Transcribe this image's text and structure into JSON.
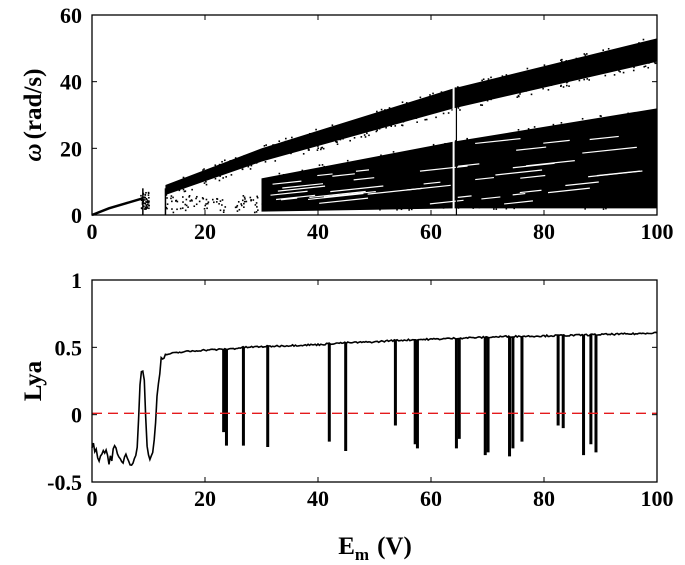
{
  "chart_data": [
    {
      "type": "scatter",
      "title": "",
      "ylabel_symbol": "ω",
      "ylabel_unit": "(rad/s)",
      "xlabel": "",
      "xlim": [
        0,
        100
      ],
      "ylim": [
        0,
        60
      ],
      "xticks": [
        "0",
        "20",
        "40",
        "60",
        "80",
        "100"
      ],
      "yticks": [
        "0",
        "20",
        "40",
        "60"
      ],
      "grid": false,
      "color": "#000000",
      "band_upper": {
        "x": [
          13,
          30,
          64,
          100
        ],
        "y_low": [
          6,
          16,
          32,
          46
        ],
        "y_high": [
          9,
          20,
          38,
          53
        ]
      },
      "band_lower": {
        "x": [
          30,
          64,
          100
        ],
        "y_low": [
          1,
          2,
          2
        ],
        "y_high": [
          11,
          22,
          32
        ]
      },
      "features": {
        "startup_curve": [
          [
            0,
            0
          ],
          [
            3,
            2
          ],
          [
            6,
            3.5
          ],
          [
            9,
            5
          ]
        ],
        "column_breaks": [
          9,
          13,
          64
        ]
      }
    },
    {
      "type": "line",
      "title": "",
      "ylabel": "Lya",
      "xlabel": "E",
      "xlabel_sub": "m",
      "xlabel_unit": "(V)",
      "xlim": [
        0,
        100
      ],
      "ylim": [
        -0.5,
        1
      ],
      "xticks": [
        "0",
        "20",
        "40",
        "60",
        "80",
        "100"
      ],
      "yticks": [
        "-0.5",
        "0",
        "0.5",
        "1"
      ],
      "grid": false,
      "series": [
        {
          "color": "#000000",
          "x": [
            0,
            1,
            2,
            3,
            4,
            5,
            6,
            7,
            8,
            8.6,
            9.2,
            9.8,
            10.4,
            11,
            11.6,
            12.2,
            12.8,
            13.5,
            15,
            17,
            20,
            23,
            25,
            27,
            30,
            33,
            36,
            40,
            43,
            46,
            50,
            53,
            56,
            60,
            63,
            66,
            70,
            73,
            76,
            80,
            83,
            86,
            90,
            93,
            96,
            100
          ],
          "y": [
            -0.23,
            -0.32,
            -0.25,
            -0.33,
            -0.27,
            -0.35,
            -0.3,
            -0.34,
            -0.28,
            0.35,
            0.3,
            -0.3,
            -0.34,
            -0.2,
            0.2,
            0.4,
            0.44,
            0.45,
            0.46,
            0.47,
            0.48,
            0.485,
            0.49,
            0.5,
            0.505,
            0.51,
            0.515,
            0.52,
            0.53,
            0.535,
            0.54,
            0.55,
            0.555,
            0.56,
            0.565,
            0.57,
            0.575,
            0.58,
            0.582,
            0.585,
            0.588,
            0.59,
            0.595,
            0.598,
            0.6,
            0.61
          ]
        },
        {
          "type": "dips",
          "color": "#000000",
          "x": [
            23.3,
            23.8,
            26.8,
            31.1,
            42.0,
            44.9,
            53.7,
            57.2,
            57.6,
            64.5,
            65.0,
            69.6,
            70.1,
            73.9,
            74.5,
            76.1,
            82.5,
            83.4,
            87.0,
            88.3,
            89.2
          ],
          "y": [
            -0.13,
            -0.23,
            -0.23,
            -0.24,
            -0.2,
            -0.27,
            -0.08,
            -0.22,
            -0.25,
            -0.25,
            -0.18,
            -0.3,
            -0.28,
            -0.31,
            -0.25,
            -0.2,
            -0.08,
            -0.1,
            -0.3,
            -0.22,
            -0.28
          ]
        },
        {
          "type": "reference",
          "color": "#e41a1c",
          "dashed": true,
          "x": [
            0,
            100
          ],
          "y": [
            0.01,
            0.01
          ]
        }
      ]
    }
  ]
}
